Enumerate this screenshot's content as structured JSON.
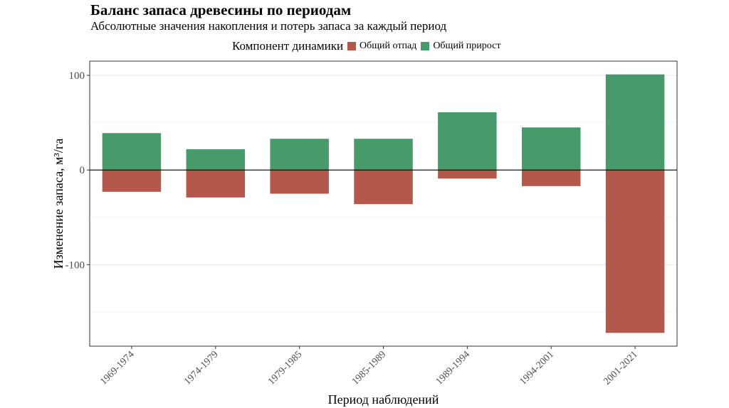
{
  "chart_data": {
    "type": "bar",
    "stacked": "diverging",
    "title": "Баланс запаса древесины по периодам",
    "subtitle": "Абсолютные значения накопления и потерь запаса за каждый период",
    "xlabel": "Период наблюдений",
    "ylabel": "Изменение запаса, м³/га",
    "ylim": [
      -186,
      115
    ],
    "yticks": [
      100,
      0,
      -100
    ],
    "ytick_labels": [
      "100",
      "0",
      "-100"
    ],
    "legend": {
      "title": "Компонент динамики",
      "position": "top"
    },
    "categories": [
      "1969-1974",
      "1974-1979",
      "1979-1985",
      "1985-1989",
      "1989-1994",
      "1994-2001",
      "2001-2021"
    ],
    "series": [
      {
        "name": "Общий отпад",
        "color": "#b5584c",
        "values": [
          -23,
          -29,
          -25,
          -36,
          -9,
          -17,
          -172
        ]
      },
      {
        "name": "Общий прирост",
        "color": "#479a69",
        "values": [
          39,
          22,
          33,
          33,
          61,
          45,
          101
        ]
      }
    ]
  }
}
